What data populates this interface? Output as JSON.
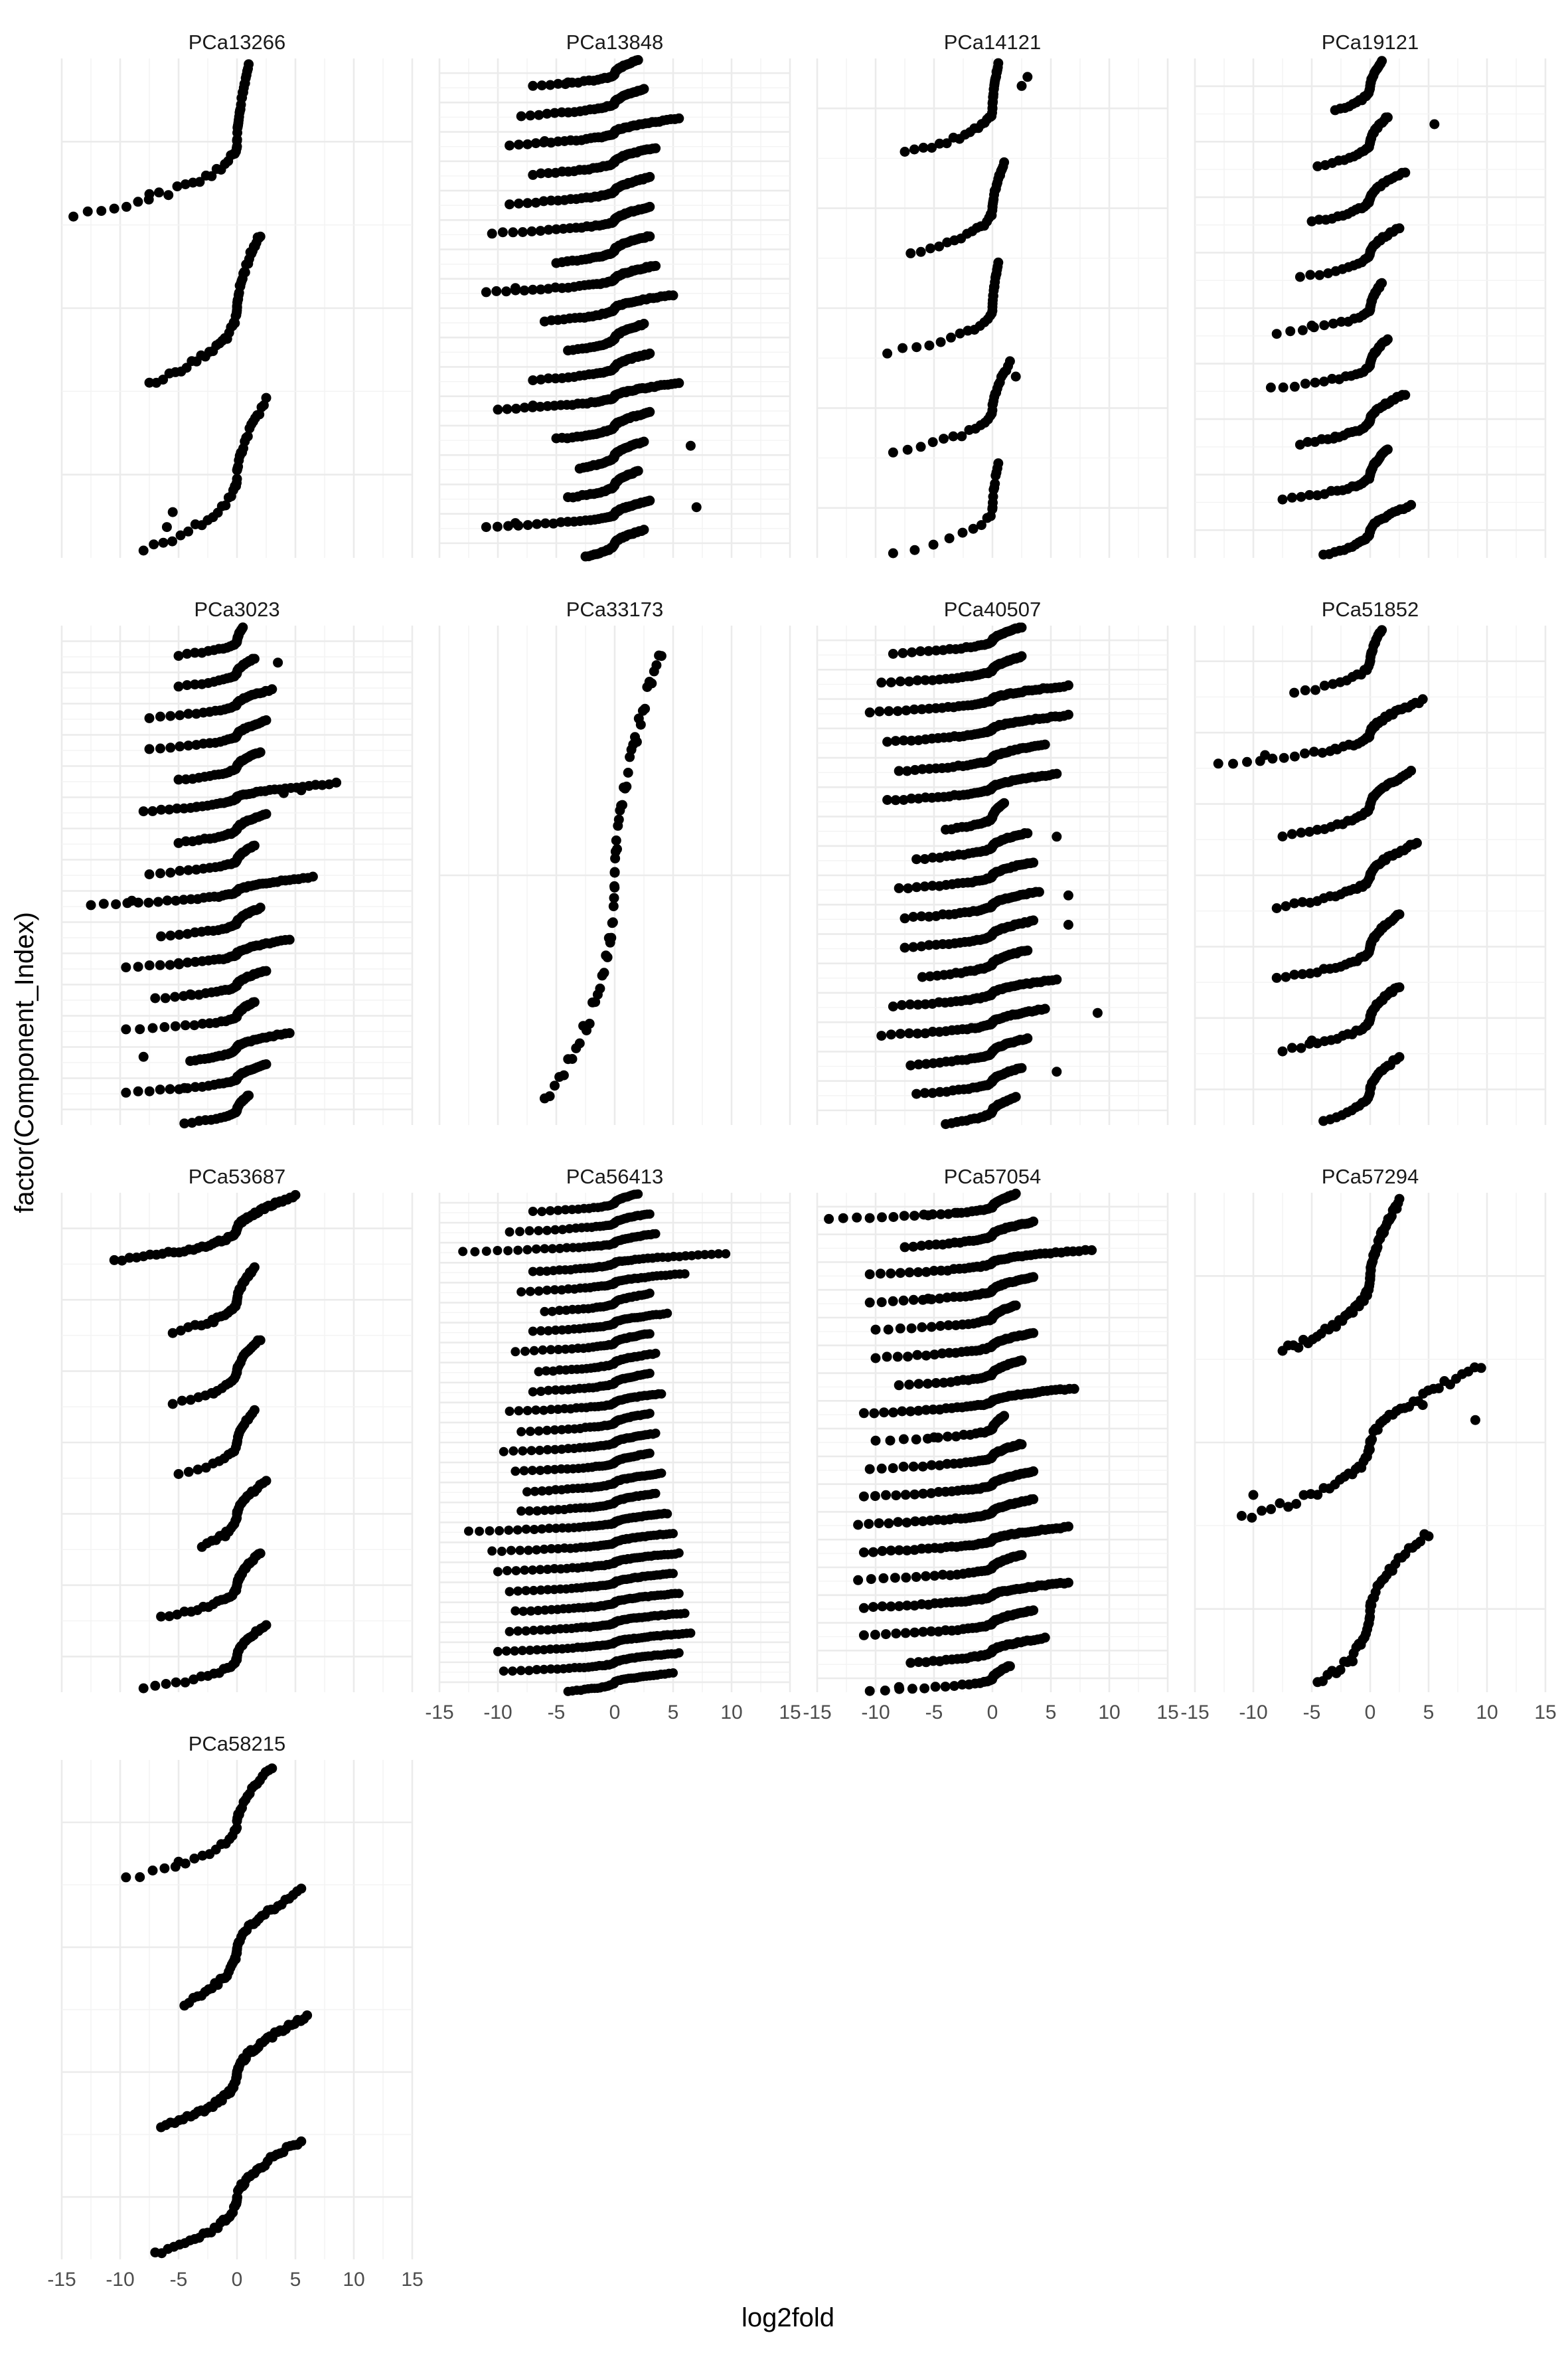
{
  "chart_data": {
    "type": "scatter",
    "xlabel": "log2fold",
    "ylabel": "factor(Component_Index)",
    "xlim": [
      -15,
      15
    ],
    "x_ticks": [
      "-15",
      "-10",
      "-5",
      "0",
      "5",
      "10",
      "15"
    ],
    "grid": true,
    "legend": "none",
    "point_color": "#000000",
    "panels": [
      {
        "name": "PCa13266",
        "components": [
          {
            "min": -8.0,
            "max": 2.5,
            "n": 40,
            "outliers": [
              -6.0,
              -5.5
            ]
          },
          {
            "min": -7.5,
            "max": 2.0,
            "n": 55,
            "outliers": []
          },
          {
            "min": -14.0,
            "max": 1.0,
            "n": 50,
            "outliers": [
              -7.5
            ]
          }
        ]
      },
      {
        "name": "PCa13848",
        "components": [
          {
            "min": -2.5,
            "max": 2.5,
            "n": 40,
            "outliers": []
          },
          {
            "min": -11.0,
            "max": 3.0,
            "n": 50,
            "outliers": [
              -8.5,
              7.0
            ]
          },
          {
            "min": -4.0,
            "max": 2.0,
            "n": 40,
            "outliers": []
          },
          {
            "min": -3.0,
            "max": 2.5,
            "n": 40,
            "outliers": [
              6.5
            ]
          },
          {
            "min": -5.0,
            "max": 3.0,
            "n": 45,
            "outliers": []
          },
          {
            "min": -10.0,
            "max": 5.5,
            "n": 55,
            "outliers": [
              -7.0
            ]
          },
          {
            "min": -7.0,
            "max": 3.0,
            "n": 45,
            "outliers": []
          },
          {
            "min": -4.0,
            "max": 2.5,
            "n": 40,
            "outliers": []
          },
          {
            "min": -6.0,
            "max": 5.0,
            "n": 45,
            "outliers": []
          },
          {
            "min": -11.0,
            "max": 3.5,
            "n": 55,
            "outliers": [
              -8.5
            ]
          },
          {
            "min": -5.0,
            "max": 3.0,
            "n": 45,
            "outliers": []
          },
          {
            "min": -10.5,
            "max": 3.0,
            "n": 50,
            "outliers": []
          },
          {
            "min": -9.0,
            "max": 3.0,
            "n": 50,
            "outliers": []
          },
          {
            "min": -7.0,
            "max": 3.5,
            "n": 45,
            "outliers": []
          },
          {
            "min": -9.0,
            "max": 5.5,
            "n": 50,
            "outliers": [
              -6.0
            ]
          },
          {
            "min": -8.0,
            "max": 2.5,
            "n": 45,
            "outliers": []
          },
          {
            "min": -7.0,
            "max": 2.0,
            "n": 40,
            "outliers": [
              -4.0
            ]
          }
        ]
      },
      {
        "name": "PCa14121",
        "components": [
          {
            "min": -8.5,
            "max": 0.5,
            "n": 20,
            "outliers": []
          },
          {
            "min": -8.5,
            "max": 1.5,
            "n": 30,
            "outliers": [
              2.0
            ]
          },
          {
            "min": -9.0,
            "max": 0.5,
            "n": 30,
            "outliers": []
          },
          {
            "min": -7.0,
            "max": 1.0,
            "n": 35,
            "outliers": []
          },
          {
            "min": -7.5,
            "max": 0.5,
            "n": 40,
            "outliers": [
              3.0,
              2.5
            ]
          }
        ]
      },
      {
        "name": "PCa19121",
        "components": [
          {
            "min": -4.0,
            "max": 3.5,
            "n": 35,
            "outliers": []
          },
          {
            "min": -7.5,
            "max": 1.5,
            "n": 40,
            "outliers": []
          },
          {
            "min": -6.0,
            "max": 3.0,
            "n": 40,
            "outliers": [
              -3.0
            ]
          },
          {
            "min": -8.5,
            "max": 1.5,
            "n": 35,
            "outliers": []
          },
          {
            "min": -8.0,
            "max": 1.0,
            "n": 30,
            "outliers": [
              -5.0
            ]
          },
          {
            "min": -6.0,
            "max": 2.5,
            "n": 30,
            "outliers": []
          },
          {
            "min": -5.0,
            "max": 3.0,
            "n": 35,
            "outliers": []
          },
          {
            "min": -4.5,
            "max": 1.5,
            "n": 30,
            "outliers": [
              5.5
            ]
          },
          {
            "min": -3.0,
            "max": 1.0,
            "n": 30,
            "outliers": []
          }
        ]
      },
      {
        "name": "PCa3023",
        "components": [
          {
            "min": -4.5,
            "max": 1.0,
            "n": 30,
            "outliers": []
          },
          {
            "min": -9.5,
            "max": 2.5,
            "n": 40,
            "outliers": [
              -4.5
            ]
          },
          {
            "min": -4.0,
            "max": 4.5,
            "n": 40,
            "outliers": [
              -8.0
            ]
          },
          {
            "min": -9.5,
            "max": 1.5,
            "n": 35,
            "outliers": []
          },
          {
            "min": -7.0,
            "max": 2.5,
            "n": 35,
            "outliers": [
              -4.0
            ]
          },
          {
            "min": -9.5,
            "max": 4.5,
            "n": 40,
            "outliers": [
              -5.0
            ]
          },
          {
            "min": -6.5,
            "max": 2.0,
            "n": 35,
            "outliers": []
          },
          {
            "min": -12.5,
            "max": 6.5,
            "n": 50,
            "outliers": [
              -9.0
            ]
          },
          {
            "min": -7.5,
            "max": 1.5,
            "n": 35,
            "outliers": []
          },
          {
            "min": -5.0,
            "max": 2.5,
            "n": 35,
            "outliers": []
          },
          {
            "min": -8.0,
            "max": 8.5,
            "n": 45,
            "outliers": [
              -3.5,
              5.5,
              4.0
            ]
          },
          {
            "min": -5.0,
            "max": 2.0,
            "n": 35,
            "outliers": []
          },
          {
            "min": -7.5,
            "max": 2.5,
            "n": 35,
            "outliers": []
          },
          {
            "min": -7.5,
            "max": 3.0,
            "n": 35,
            "outliers": []
          },
          {
            "min": -5.0,
            "max": 1.5,
            "n": 30,
            "outliers": [
              3.5
            ]
          },
          {
            "min": -5.0,
            "max": 0.5,
            "n": 30,
            "outliers": []
          }
        ]
      },
      {
        "name": "PCa33173",
        "components": [
          {
            "min": -6.0,
            "max": 4.0,
            "n": 60,
            "outliers": []
          }
        ]
      },
      {
        "name": "PCa40507",
        "components": [
          {
            "min": -4.0,
            "max": 2.0,
            "n": 35,
            "outliers": []
          },
          {
            "min": -6.5,
            "max": 2.5,
            "n": 40,
            "outliers": [
              5.5
            ]
          },
          {
            "min": -7.0,
            "max": 3.0,
            "n": 45,
            "outliers": []
          },
          {
            "min": -9.5,
            "max": 4.5,
            "n": 50,
            "outliers": [
              9.0
            ]
          },
          {
            "min": -8.5,
            "max": 5.5,
            "n": 50,
            "outliers": []
          },
          {
            "min": -6.0,
            "max": 3.0,
            "n": 40,
            "outliers": []
          },
          {
            "min": -7.5,
            "max": 3.5,
            "n": 45,
            "outliers": [
              6.5
            ]
          },
          {
            "min": -7.5,
            "max": 4.0,
            "n": 45,
            "outliers": [
              6.5
            ]
          },
          {
            "min": -8.0,
            "max": 3.5,
            "n": 45,
            "outliers": []
          },
          {
            "min": -6.5,
            "max": 3.0,
            "n": 40,
            "outliers": [
              5.5
            ]
          },
          {
            "min": -4.0,
            "max": 1.0,
            "n": 35,
            "outliers": []
          },
          {
            "min": -9.0,
            "max": 5.5,
            "n": 55,
            "outliers": []
          },
          {
            "min": -8.0,
            "max": 4.5,
            "n": 50,
            "outliers": []
          },
          {
            "min": -9.0,
            "max": 6.5,
            "n": 55,
            "outliers": []
          },
          {
            "min": -10.5,
            "max": 6.5,
            "n": 55,
            "outliers": []
          },
          {
            "min": -9.5,
            "max": 2.5,
            "n": 50,
            "outliers": []
          },
          {
            "min": -8.5,
            "max": 2.5,
            "n": 45,
            "outliers": []
          }
        ]
      },
      {
        "name": "PCa51852",
        "components": [
          {
            "min": -4.0,
            "max": 2.5,
            "n": 30,
            "outliers": []
          },
          {
            "min": -7.5,
            "max": 2.5,
            "n": 40,
            "outliers": [
              -5.0
            ]
          },
          {
            "min": -8.0,
            "max": 2.5,
            "n": 45,
            "outliers": []
          },
          {
            "min": -8.0,
            "max": 4.0,
            "n": 45,
            "outliers": []
          },
          {
            "min": -7.5,
            "max": 3.5,
            "n": 40,
            "outliers": []
          },
          {
            "min": -13.0,
            "max": 4.5,
            "n": 45,
            "outliers": [
              -9.0,
              -3.0
            ]
          },
          {
            "min": -6.5,
            "max": 1.0,
            "n": 30,
            "outliers": []
          }
        ]
      },
      {
        "name": "PCa53687",
        "components": [
          {
            "min": -8.0,
            "max": 2.5,
            "n": 35,
            "outliers": []
          },
          {
            "min": -6.5,
            "max": 2.0,
            "n": 40,
            "outliers": []
          },
          {
            "min": -3.0,
            "max": 2.5,
            "n": 30,
            "outliers": [
              -1.0
            ]
          },
          {
            "min": -5.0,
            "max": 1.5,
            "n": 25,
            "outliers": []
          },
          {
            "min": -5.5,
            "max": 2.0,
            "n": 30,
            "outliers": [
              -2.0
            ]
          },
          {
            "min": -5.5,
            "max": 1.5,
            "n": 35,
            "outliers": [
              -2.0
            ]
          },
          {
            "min": -10.5,
            "max": 5.0,
            "n": 70,
            "outliers": []
          }
        ]
      },
      {
        "name": "PCa56413",
        "components": [
          {
            "min": -4.0,
            "max": 5.0,
            "n": 45,
            "outliers": []
          },
          {
            "min": -9.5,
            "max": 5.5,
            "n": 55,
            "outliers": []
          },
          {
            "min": -10.0,
            "max": 6.5,
            "n": 60,
            "outliers": []
          },
          {
            "min": -9.0,
            "max": 6.0,
            "n": 55,
            "outliers": []
          },
          {
            "min": -8.5,
            "max": 5.5,
            "n": 55,
            "outliers": []
          },
          {
            "min": -9.0,
            "max": 5.0,
            "n": 55,
            "outliers": []
          },
          {
            "min": -10.0,
            "max": 5.5,
            "n": 55,
            "outliers": []
          },
          {
            "min": -10.5,
            "max": 5.0,
            "n": 55,
            "outliers": []
          },
          {
            "min": -12.5,
            "max": 4.5,
            "n": 60,
            "outliers": []
          },
          {
            "min": -8.0,
            "max": 3.5,
            "n": 50,
            "outliers": []
          },
          {
            "min": -7.5,
            "max": 4.0,
            "n": 50,
            "outliers": []
          },
          {
            "min": -8.5,
            "max": 3.0,
            "n": 50,
            "outliers": []
          },
          {
            "min": -9.5,
            "max": 3.5,
            "n": 50,
            "outliers": []
          },
          {
            "min": -8.0,
            "max": 3.0,
            "n": 45,
            "outliers": []
          },
          {
            "min": -9.0,
            "max": 4.0,
            "n": 50,
            "outliers": []
          },
          {
            "min": -7.0,
            "max": 3.0,
            "n": 45,
            "outliers": []
          },
          {
            "min": -6.5,
            "max": 3.5,
            "n": 45,
            "outliers": []
          },
          {
            "min": -8.5,
            "max": 3.0,
            "n": 45,
            "outliers": []
          },
          {
            "min": -7.0,
            "max": 4.5,
            "n": 45,
            "outliers": []
          },
          {
            "min": -6.0,
            "max": 3.0,
            "n": 40,
            "outliers": []
          },
          {
            "min": -8.0,
            "max": 6.0,
            "n": 45,
            "outliers": []
          },
          {
            "min": -7.0,
            "max": 9.5,
            "n": 50,
            "outliers": []
          },
          {
            "min": -13.0,
            "max": 3.5,
            "n": 55,
            "outliers": []
          },
          {
            "min": -9.0,
            "max": 3.0,
            "n": 45,
            "outliers": []
          },
          {
            "min": -7.0,
            "max": 2.0,
            "n": 40,
            "outliers": []
          }
        ]
      },
      {
        "name": "PCa57054",
        "components": [
          {
            "min": -10.5,
            "max": 1.5,
            "n": 35,
            "outliers": [
              -8.0
            ]
          },
          {
            "min": -7.0,
            "max": 4.5,
            "n": 45,
            "outliers": []
          },
          {
            "min": -11.0,
            "max": 3.5,
            "n": 50,
            "outliers": []
          },
          {
            "min": -11.0,
            "max": 6.5,
            "n": 60,
            "outliers": []
          },
          {
            "min": -11.5,
            "max": 2.5,
            "n": 45,
            "outliers": []
          },
          {
            "min": -11.0,
            "max": 6.5,
            "n": 60,
            "outliers": []
          },
          {
            "min": -11.5,
            "max": 3.5,
            "n": 55,
            "outliers": []
          },
          {
            "min": -11.0,
            "max": 3.5,
            "n": 50,
            "outliers": []
          },
          {
            "min": -10.5,
            "max": 2.5,
            "n": 45,
            "outliers": []
          },
          {
            "min": -10.0,
            "max": 1.0,
            "n": 35,
            "outliers": [
              -5.0
            ]
          },
          {
            "min": -11.0,
            "max": 7.0,
            "n": 55,
            "outliers": []
          },
          {
            "min": -8.0,
            "max": 2.5,
            "n": 40,
            "outliers": []
          },
          {
            "min": -10.0,
            "max": 3.5,
            "n": 45,
            "outliers": []
          },
          {
            "min": -10.0,
            "max": 2.0,
            "n": 40,
            "outliers": []
          },
          {
            "min": -10.5,
            "max": 3.5,
            "n": 45,
            "outliers": [
              -5.5
            ]
          },
          {
            "min": -10.5,
            "max": 8.5,
            "n": 50,
            "outliers": []
          },
          {
            "min": -7.5,
            "max": 3.5,
            "n": 45,
            "outliers": []
          },
          {
            "min": -14.0,
            "max": 2.0,
            "n": 50,
            "outliers": [
              -5.5,
              -3.0
            ]
          }
        ]
      },
      {
        "name": "PCa57294",
        "components": [
          {
            "min": -4.5,
            "max": 5.0,
            "n": 45,
            "outliers": [
              -1.5
            ]
          },
          {
            "min": -11.0,
            "max": 9.5,
            "n": 55,
            "outliers": [
              -10.0,
              4.5,
              9.0
            ]
          },
          {
            "min": -7.5,
            "max": 2.5,
            "n": 70,
            "outliers": []
          }
        ]
      },
      {
        "name": "PCa58215",
        "components": [
          {
            "min": -7.0,
            "max": 5.5,
            "n": 55,
            "outliers": []
          },
          {
            "min": -6.5,
            "max": 6.0,
            "n": 70,
            "outliers": []
          },
          {
            "min": -4.5,
            "max": 5.5,
            "n": 50,
            "outliers": []
          },
          {
            "min": -9.5,
            "max": 3.0,
            "n": 35,
            "outliers": [
              -5.0
            ]
          }
        ]
      }
    ]
  }
}
